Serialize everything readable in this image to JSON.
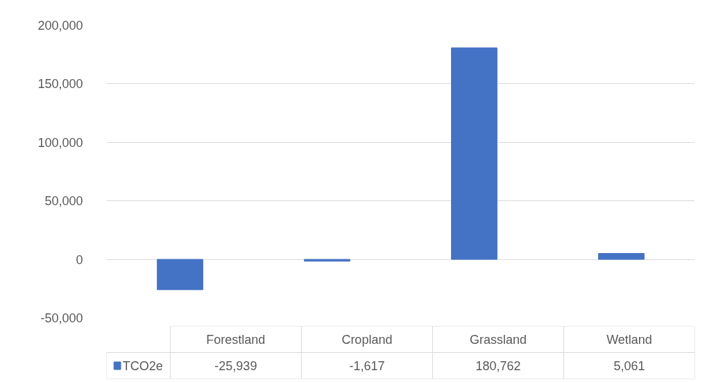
{
  "chart_data": {
    "type": "bar",
    "categories": [
      "Forestland",
      "Cropland",
      "Grassland",
      "Wetland"
    ],
    "series": [
      {
        "name": "TCO2e",
        "color": "#4472c4",
        "values": [
          -25939,
          -1617,
          180762,
          5061
        ],
        "value_labels": [
          "-25,939",
          "-1,617",
          "180,762",
          "5,061"
        ]
      }
    ],
    "ylim": [
      -50000,
      200000
    ],
    "yticks": [
      {
        "value": -50000,
        "label": "-50,000"
      },
      {
        "value": 0,
        "label": "0"
      },
      {
        "value": 50000,
        "label": "50,000"
      },
      {
        "value": 100000,
        "label": "100,000"
      },
      {
        "value": 150000,
        "label": "150,000"
      },
      {
        "value": 200000,
        "label": "200,000"
      }
    ],
    "grid": "y",
    "legend": "bottom"
  }
}
